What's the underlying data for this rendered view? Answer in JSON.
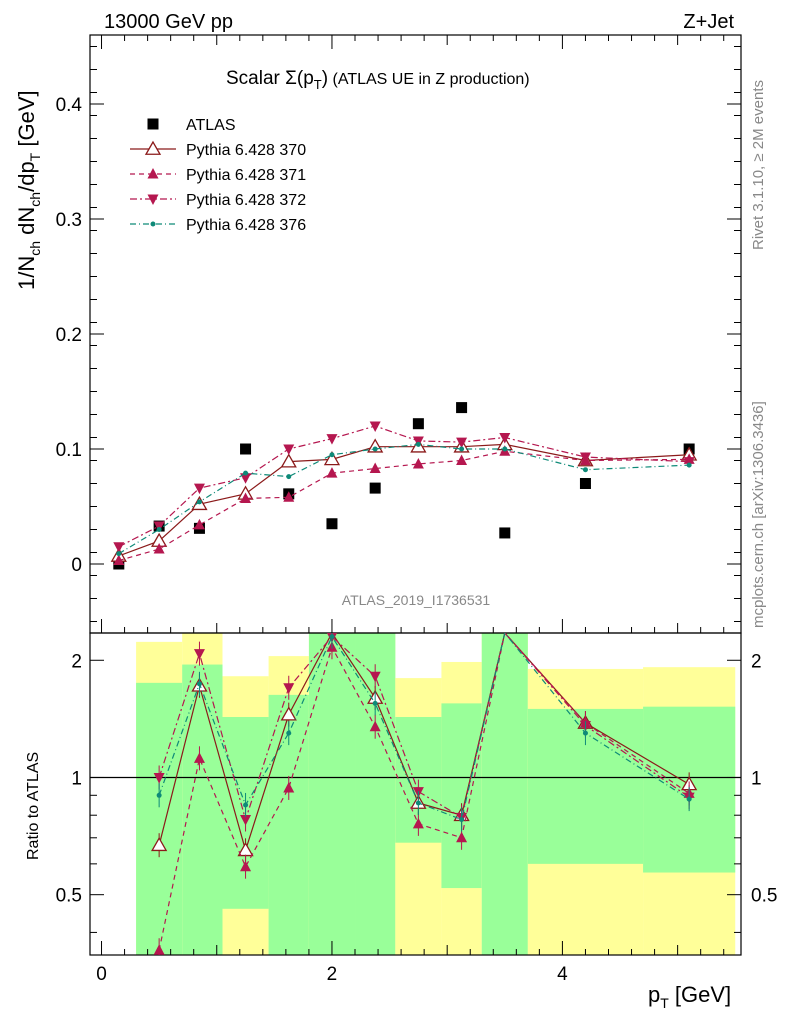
{
  "header": {
    "left": "13000 GeV pp",
    "right": "Z+Jet"
  },
  "plot": {
    "title_prefix": "Scalar Σ(p",
    "title_sub": "T",
    "title_close": ")",
    "title_suffix": " (ATLAS UE in Z production)",
    "analysis_id": "ATLAS_2019_I1736531",
    "side_top": "Rivet 3.1.10, ≥ 2M events",
    "side_bottom": "mcplots.cern.ch [arXiv:1306.3436]"
  },
  "chart_data": [
    {
      "type": "scatter",
      "panel": "main",
      "ylabel": "1/N_ch dN_ch/dp_T [GeV]",
      "xlim": [
        -0.1,
        5.55
      ],
      "ylim": [
        -0.06,
        0.46
      ],
      "yticks": [
        0,
        0.1,
        0.2,
        0.3,
        0.4
      ],
      "ytick_labels": [
        "0",
        "0.1",
        "0.2",
        "0.3",
        "0.4"
      ],
      "legend_position": "top-left",
      "x": [
        0.15,
        0.5,
        0.85,
        1.25,
        1.625,
        2.0,
        2.375,
        2.75,
        3.125,
        3.5,
        4.2,
        5.1
      ],
      "series": [
        {
          "name": "ATLAS",
          "color": "#000000",
          "marker": "square",
          "values": [
            0.0,
            0.033,
            0.031,
            0.1,
            0.061,
            0.035,
            0.066,
            0.122,
            0.136,
            0.027,
            0.07,
            0.1
          ]
        },
        {
          "name": "Pythia 6.428 370",
          "color": "#8b1a1a",
          "marker": "triangle-open",
          "dash": "",
          "values": [
            0.007,
            0.02,
            0.052,
            0.061,
            0.089,
            0.091,
            0.102,
            0.102,
            0.102,
            0.104,
            0.09,
            0.095
          ]
        },
        {
          "name": "Pythia 6.428 371",
          "color": "#b5174f",
          "marker": "triangle-up",
          "dash": "5,4",
          "values": [
            0.003,
            0.013,
            0.034,
            0.057,
            0.058,
            0.079,
            0.083,
            0.087,
            0.09,
            0.098,
            0.09,
            0.091
          ]
        },
        {
          "name": "Pythia 6.428 372",
          "color": "#b5174f",
          "marker": "triangle-down",
          "dash": "7,3,2,3",
          "values": [
            0.015,
            0.033,
            0.066,
            0.075,
            0.1,
            0.109,
            0.12,
            0.107,
            0.106,
            0.11,
            0.093,
            0.089
          ]
        },
        {
          "name": "Pythia 6.428 376",
          "color": "#0e8a78",
          "marker": "dot",
          "dash": "6,3,1,3",
          "values": [
            0.009,
            0.03,
            0.054,
            0.079,
            0.076,
            0.095,
            0.1,
            0.104,
            0.1,
            0.1,
            0.082,
            0.086
          ]
        }
      ]
    },
    {
      "type": "line",
      "panel": "ratio",
      "ylabel": "Ratio to ATLAS",
      "xlabel": "p_T [GeV]",
      "xlim": [
        -0.1,
        5.55
      ],
      "ylim": [
        0.35,
        2.35
      ],
      "yticks": [
        0.5,
        1,
        2
      ],
      "ytick_labels": [
        "0.5",
        "1",
        "2"
      ],
      "xticks": [
        0,
        2,
        4
      ],
      "xtick_labels": [
        "0",
        "2",
        "4"
      ],
      "x": [
        0.5,
        0.85,
        1.25,
        1.625,
        2.0,
        2.375,
        2.75,
        3.125,
        3.5,
        4.2,
        5.1
      ],
      "bands": {
        "edges": [
          0.3,
          0.7,
          1.05,
          1.45,
          1.8,
          2.2,
          2.55,
          2.95,
          3.3,
          3.7,
          4.7,
          5.5
        ],
        "green_lo": [
          0.35,
          0.35,
          0.46,
          0.35,
          0.35,
          0.35,
          0.35,
          0.35,
          0.35,
          0.35,
          0.35
        ],
        "green_hi": [
          1.75,
          1.95,
          1.43,
          1.63,
          2.35,
          2.35,
          1.43,
          1.55,
          2.35,
          1.5,
          1.52
        ],
        "yellow_lo": [
          0.35,
          0.35,
          0.35,
          0.35,
          0.35,
          0.35,
          0.35,
          0.35,
          0.35,
          0.35,
          0.35
        ],
        "yellow_hi": [
          2.23,
          2.35,
          1.82,
          2.05,
          2.35,
          2.35,
          1.8,
          1.98,
          2.35,
          1.9,
          1.92
        ],
        "yellow_between": [
          [
            0.35,
            0.35
          ],
          [
            0.35,
            0.35
          ],
          [
            0.46,
            0.35
          ],
          [
            0.35,
            0.35
          ],
          [
            0.35,
            0.35
          ],
          [
            0.35,
            0.35
          ],
          [
            0.68,
            0.35
          ],
          [
            0.52,
            0.35
          ],
          [
            0.35,
            0.35
          ],
          [
            0.6,
            0.35
          ],
          [
            0.57,
            0.35
          ]
        ]
      },
      "series": [
        {
          "name": "Pythia 6.428 370",
          "values": [
            0.67,
            1.72,
            0.65,
            1.45,
            2.35,
            1.6,
            0.86,
            0.8,
            2.35,
            1.38,
            0.96
          ]
        },
        {
          "name": "Pythia 6.428 371",
          "values": [
            0.36,
            1.12,
            0.59,
            0.94,
            2.16,
            1.35,
            0.76,
            0.7,
            2.35,
            1.38,
            0.91
          ]
        },
        {
          "name": "Pythia 6.428 372",
          "values": [
            1.0,
            2.08,
            0.78,
            1.7,
            2.3,
            1.82,
            0.92,
            0.79,
            2.35,
            1.36,
            0.89
          ]
        },
        {
          "name": "Pythia 6.428 376",
          "values": [
            0.9,
            1.74,
            0.85,
            1.3,
            2.3,
            1.55,
            0.86,
            0.78,
            2.35,
            1.3,
            0.88
          ]
        }
      ]
    }
  ]
}
